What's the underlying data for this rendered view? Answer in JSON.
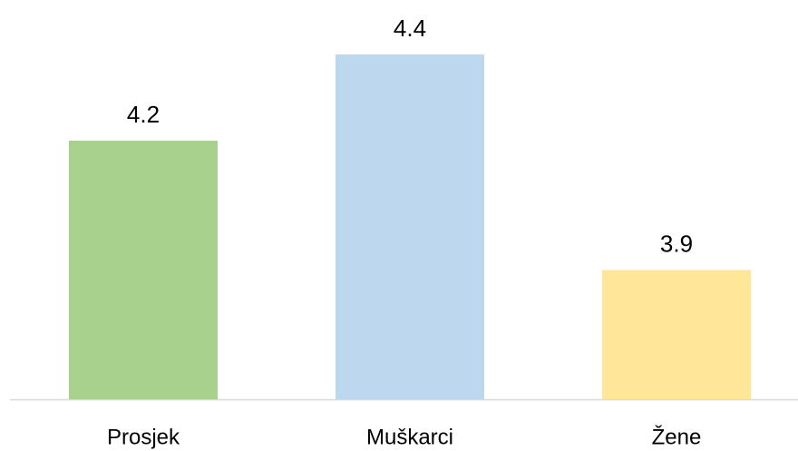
{
  "chart_data": {
    "type": "bar",
    "categories": [
      "Prosjek",
      "Muškarci",
      "Žene"
    ],
    "values": [
      4.2,
      4.4,
      3.9
    ],
    "colors": [
      "#a9d18e",
      "#bdd7ee",
      "#ffe699"
    ],
    "ylim": [
      3.6,
      4.5
    ]
  }
}
